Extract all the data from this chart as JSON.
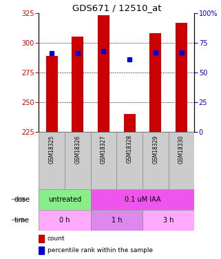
{
  "title": "GDS671 / 12510_at",
  "samples": [
    "GSM18325",
    "GSM18326",
    "GSM18327",
    "GSM18328",
    "GSM18329",
    "GSM18330"
  ],
  "bar_bottoms": [
    225,
    225,
    225,
    225,
    225,
    225
  ],
  "bar_tops": [
    289,
    305,
    323,
    240,
    308,
    317
  ],
  "percentile_values": [
    291,
    291,
    293,
    286,
    292,
    292
  ],
  "ylim": [
    225,
    325
  ],
  "yticks_left": [
    225,
    250,
    275,
    300,
    325
  ],
  "yticks_right": [
    0,
    25,
    50,
    75,
    100
  ],
  "bar_color": "#cc0000",
  "dot_color": "#0000cc",
  "dose_labels": [
    {
      "text": "untreated",
      "start": 0,
      "end": 2,
      "color": "#88ee88"
    },
    {
      "text": "0.1 uM IAA",
      "start": 2,
      "end": 6,
      "color": "#ee55ee"
    }
  ],
  "time_labels": [
    {
      "text": "0 h",
      "start": 0,
      "end": 2,
      "color": "#ffaaff"
    },
    {
      "text": "1 h",
      "start": 2,
      "end": 4,
      "color": "#dd88ee"
    },
    {
      "text": "3 h",
      "start": 4,
      "end": 6,
      "color": "#ffaaff"
    }
  ],
  "sample_bg_color": "#cccccc",
  "legend_count_color": "#cc0000",
  "legend_pct_color": "#0000cc",
  "legend_count_label": "count",
  "legend_pct_label": "percentile rank within the sample",
  "left_tick_color": "#cc0000",
  "right_tick_color": "#0000cc",
  "arrow_color": "#999999"
}
